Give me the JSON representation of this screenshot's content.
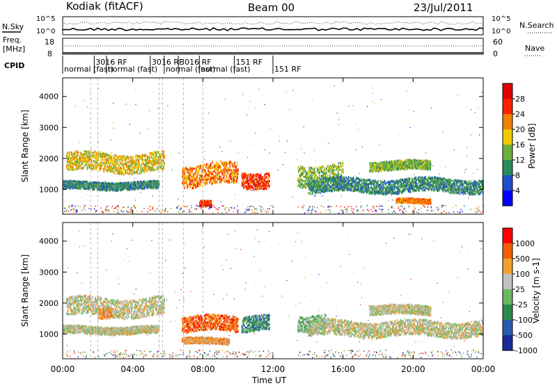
{
  "header": {
    "station": "Kodiak (fitACF)",
    "beam": "Beam 00",
    "date": "23/Jul/2011"
  },
  "top_panels": {
    "nsky_label": "N.Sky",
    "nsky_ticks": [
      "10^5",
      "10^0"
    ],
    "nsearch_label": "N.Search",
    "nsearch_ticks": [
      "10^5",
      "10^0"
    ],
    "freq_label_1": "Freq.",
    "freq_label_2": "[MHz]",
    "freq_ticks": [
      "18",
      "8"
    ],
    "nave_label": "Nave",
    "nave_ticks": [
      "60",
      "0"
    ],
    "cpid_label": "CPID",
    "cpid_annotations": [
      {
        "text": "normal (fast)",
        "hour": 0.0
      },
      {
        "text": "3016 RF",
        "hour": 1.8
      },
      {
        "text": "normal (fast)",
        "hour": 2.5
      },
      {
        "text": "3016 RF",
        "hour": 5.0
      },
      {
        "text": "normal (fast)",
        "hour": 5.8
      },
      {
        "text": "3016 RF",
        "hour": 6.6
      },
      {
        "text": "normal (fast)",
        "hour": 7.8
      },
      {
        "text": "151 RF",
        "hour": 9.8
      },
      {
        "text": "151 RF",
        "hour": 12.0
      }
    ]
  },
  "chart_data": [
    {
      "type": "heatmap",
      "panel": "power",
      "ylabel": "Slant Range [km]",
      "xlabel": "",
      "ylim": [
        200,
        4600
      ],
      "yticks": [
        1000,
        2000,
        3000,
        4000
      ],
      "xlim": [
        0,
        24
      ],
      "colorbar_label": "Power [dB]",
      "colorbar_ticks": [
        "28",
        "24",
        "20",
        "16",
        "12",
        "8",
        "4"
      ],
      "colors": [
        "#0000ff",
        "#2050c8",
        "#2a8a5a",
        "#6ab040",
        "#f0c800",
        "#f08000",
        "#ff2000",
        "#e00000"
      ],
      "bands": [
        {
          "t_start": 0.2,
          "t_end": 5.8,
          "range_center": 1900,
          "range_width": 600,
          "level": 4
        },
        {
          "t_start": 0.0,
          "t_end": 5.5,
          "range_center": 1150,
          "range_width": 250,
          "level": 2
        },
        {
          "t_start": 6.8,
          "t_end": 10.0,
          "range_center": 1500,
          "range_width": 700,
          "level": 5
        },
        {
          "t_start": 10.2,
          "t_end": 11.8,
          "range_center": 1350,
          "range_width": 500,
          "level": 6
        },
        {
          "t_start": 7.8,
          "t_end": 8.5,
          "range_center": 550,
          "range_width": 200,
          "level": 6
        },
        {
          "t_start": 13.4,
          "t_end": 16.0,
          "range_center": 1500,
          "range_width": 700,
          "level": 3
        },
        {
          "t_start": 14.0,
          "t_end": 24.0,
          "range_center": 1150,
          "range_width": 450,
          "level": 2
        },
        {
          "t_start": 17.5,
          "t_end": 21.0,
          "range_center": 1800,
          "range_width": 300,
          "level": 3
        },
        {
          "t_start": 19.0,
          "t_end": 21.0,
          "range_center": 650,
          "range_width": 150,
          "level": 5
        }
      ]
    },
    {
      "type": "heatmap",
      "panel": "velocity",
      "ylabel": "Slant Range [km]",
      "xlabel": "Time UT",
      "ylim": [
        200,
        4600
      ],
      "yticks": [
        1000,
        2000,
        3000,
        4000
      ],
      "xlim": [
        0,
        24
      ],
      "xticks": [
        "00:00",
        "04:00",
        "08:00",
        "12:00",
        "16:00",
        "20:00",
        "00:00"
      ],
      "colorbar_label": "Velocity [m s-1]",
      "colorbar_ticks": [
        "1000",
        "500",
        "100",
        "25",
        "-25",
        "-100",
        "-500",
        "-1000"
      ],
      "colors": [
        "#1a2a9a",
        "#2a5ab0",
        "#2a8a4a",
        "#6ab860",
        "#c0c0c0",
        "#f0a030",
        "#f06000",
        "#ff0000"
      ],
      "bands": [
        {
          "t_start": 0.2,
          "t_end": 5.8,
          "range_center": 1900,
          "range_width": 600,
          "level": 4
        },
        {
          "t_start": 0.0,
          "t_end": 5.5,
          "range_center": 1150,
          "range_width": 250,
          "level": 4
        },
        {
          "t_start": 2.0,
          "t_end": 2.8,
          "range_center": 1750,
          "range_width": 350,
          "level": 5
        },
        {
          "t_start": 6.8,
          "t_end": 10.0,
          "range_center": 1350,
          "range_width": 500,
          "level": 6
        },
        {
          "t_start": 6.8,
          "t_end": 9.5,
          "range_center": 800,
          "range_width": 200,
          "level": 5
        },
        {
          "t_start": 10.2,
          "t_end": 11.8,
          "range_center": 1350,
          "range_width": 500,
          "level": 2
        },
        {
          "t_start": 13.4,
          "t_end": 15.0,
          "range_center": 1400,
          "range_width": 500,
          "level": 3
        },
        {
          "t_start": 14.0,
          "t_end": 24.0,
          "range_center": 1200,
          "range_width": 500,
          "level": 4
        },
        {
          "t_start": 17.5,
          "t_end": 21.0,
          "range_center": 1800,
          "range_width": 300,
          "level": 4
        }
      ]
    }
  ]
}
